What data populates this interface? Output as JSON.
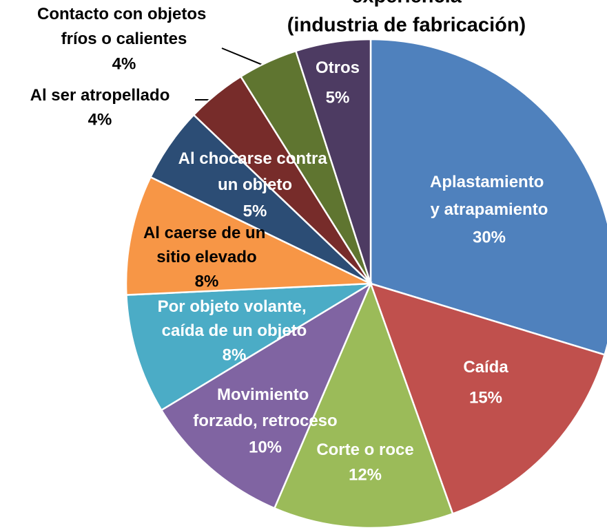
{
  "chart_data": {
    "type": "pie",
    "title": [
      "experiencia",
      "(industria de fabricación)"
    ],
    "categories": [
      "Aplastamiento y atrapamiento",
      "Caída",
      "Corte o roce",
      "Movimiento forzado, retroceso",
      "Por objeto volante, caída de un objeto",
      "Al caerse de un sitio elevado",
      "Al chocarse contra un objeto",
      "Al ser atropellado",
      "Contacto con objetos fríos o calientes",
      "Otros"
    ],
    "values": [
      30,
      15,
      12,
      10,
      8,
      8,
      5,
      4,
      4,
      5
    ],
    "value_labels": [
      "30%",
      "15%",
      "12%",
      "10%",
      "8%",
      "8%",
      "5%",
      "4%",
      "4%",
      "5%"
    ],
    "colors": [
      "#4f81bd",
      "#c0504d",
      "#9bbb59",
      "#8064a2",
      "#4bacc6",
      "#f79646",
      "#2c4d75",
      "#772c2a",
      "#5f7530",
      "#4d3b62"
    ]
  }
}
